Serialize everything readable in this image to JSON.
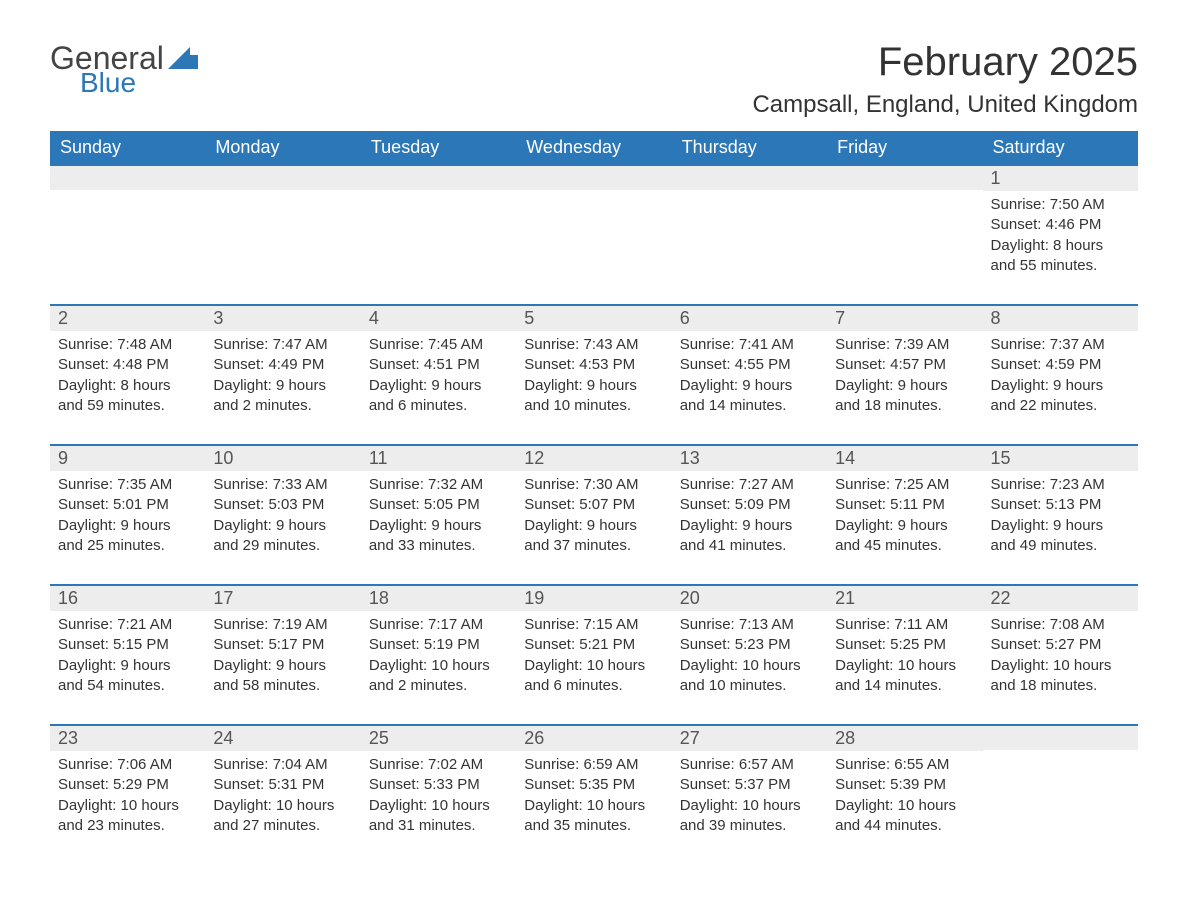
{
  "brand": {
    "text1": "General",
    "text2": "Blue",
    "color_general": "#444444",
    "color_blue": "#2b77b8"
  },
  "title": "February 2025",
  "location": "Campsall, England, United Kingdom",
  "header_bg": "#2b77b8",
  "header_fg": "#ffffff",
  "daynum_bg": "#ededed",
  "week_border": "#2b77b8",
  "days_of_week": [
    "Sunday",
    "Monday",
    "Tuesday",
    "Wednesday",
    "Thursday",
    "Friday",
    "Saturday"
  ],
  "weeks": [
    [
      null,
      null,
      null,
      null,
      null,
      null,
      {
        "n": "1",
        "sunrise": "Sunrise: 7:50 AM",
        "sunset": "Sunset: 4:46 PM",
        "daylight": "Daylight: 8 hours and 55 minutes."
      }
    ],
    [
      {
        "n": "2",
        "sunrise": "Sunrise: 7:48 AM",
        "sunset": "Sunset: 4:48 PM",
        "daylight": "Daylight: 8 hours and 59 minutes."
      },
      {
        "n": "3",
        "sunrise": "Sunrise: 7:47 AM",
        "sunset": "Sunset: 4:49 PM",
        "daylight": "Daylight: 9 hours and 2 minutes."
      },
      {
        "n": "4",
        "sunrise": "Sunrise: 7:45 AM",
        "sunset": "Sunset: 4:51 PM",
        "daylight": "Daylight: 9 hours and 6 minutes."
      },
      {
        "n": "5",
        "sunrise": "Sunrise: 7:43 AM",
        "sunset": "Sunset: 4:53 PM",
        "daylight": "Daylight: 9 hours and 10 minutes."
      },
      {
        "n": "6",
        "sunrise": "Sunrise: 7:41 AM",
        "sunset": "Sunset: 4:55 PM",
        "daylight": "Daylight: 9 hours and 14 minutes."
      },
      {
        "n": "7",
        "sunrise": "Sunrise: 7:39 AM",
        "sunset": "Sunset: 4:57 PM",
        "daylight": "Daylight: 9 hours and 18 minutes."
      },
      {
        "n": "8",
        "sunrise": "Sunrise: 7:37 AM",
        "sunset": "Sunset: 4:59 PM",
        "daylight": "Daylight: 9 hours and 22 minutes."
      }
    ],
    [
      {
        "n": "9",
        "sunrise": "Sunrise: 7:35 AM",
        "sunset": "Sunset: 5:01 PM",
        "daylight": "Daylight: 9 hours and 25 minutes."
      },
      {
        "n": "10",
        "sunrise": "Sunrise: 7:33 AM",
        "sunset": "Sunset: 5:03 PM",
        "daylight": "Daylight: 9 hours and 29 minutes."
      },
      {
        "n": "11",
        "sunrise": "Sunrise: 7:32 AM",
        "sunset": "Sunset: 5:05 PM",
        "daylight": "Daylight: 9 hours and 33 minutes."
      },
      {
        "n": "12",
        "sunrise": "Sunrise: 7:30 AM",
        "sunset": "Sunset: 5:07 PM",
        "daylight": "Daylight: 9 hours and 37 minutes."
      },
      {
        "n": "13",
        "sunrise": "Sunrise: 7:27 AM",
        "sunset": "Sunset: 5:09 PM",
        "daylight": "Daylight: 9 hours and 41 minutes."
      },
      {
        "n": "14",
        "sunrise": "Sunrise: 7:25 AM",
        "sunset": "Sunset: 5:11 PM",
        "daylight": "Daylight: 9 hours and 45 minutes."
      },
      {
        "n": "15",
        "sunrise": "Sunrise: 7:23 AM",
        "sunset": "Sunset: 5:13 PM",
        "daylight": "Daylight: 9 hours and 49 minutes."
      }
    ],
    [
      {
        "n": "16",
        "sunrise": "Sunrise: 7:21 AM",
        "sunset": "Sunset: 5:15 PM",
        "daylight": "Daylight: 9 hours and 54 minutes."
      },
      {
        "n": "17",
        "sunrise": "Sunrise: 7:19 AM",
        "sunset": "Sunset: 5:17 PM",
        "daylight": "Daylight: 9 hours and 58 minutes."
      },
      {
        "n": "18",
        "sunrise": "Sunrise: 7:17 AM",
        "sunset": "Sunset: 5:19 PM",
        "daylight": "Daylight: 10 hours and 2 minutes."
      },
      {
        "n": "19",
        "sunrise": "Sunrise: 7:15 AM",
        "sunset": "Sunset: 5:21 PM",
        "daylight": "Daylight: 10 hours and 6 minutes."
      },
      {
        "n": "20",
        "sunrise": "Sunrise: 7:13 AM",
        "sunset": "Sunset: 5:23 PM",
        "daylight": "Daylight: 10 hours and 10 minutes."
      },
      {
        "n": "21",
        "sunrise": "Sunrise: 7:11 AM",
        "sunset": "Sunset: 5:25 PM",
        "daylight": "Daylight: 10 hours and 14 minutes."
      },
      {
        "n": "22",
        "sunrise": "Sunrise: 7:08 AM",
        "sunset": "Sunset: 5:27 PM",
        "daylight": "Daylight: 10 hours and 18 minutes."
      }
    ],
    [
      {
        "n": "23",
        "sunrise": "Sunrise: 7:06 AM",
        "sunset": "Sunset: 5:29 PM",
        "daylight": "Daylight: 10 hours and 23 minutes."
      },
      {
        "n": "24",
        "sunrise": "Sunrise: 7:04 AM",
        "sunset": "Sunset: 5:31 PM",
        "daylight": "Daylight: 10 hours and 27 minutes."
      },
      {
        "n": "25",
        "sunrise": "Sunrise: 7:02 AM",
        "sunset": "Sunset: 5:33 PM",
        "daylight": "Daylight: 10 hours and 31 minutes."
      },
      {
        "n": "26",
        "sunrise": "Sunrise: 6:59 AM",
        "sunset": "Sunset: 5:35 PM",
        "daylight": "Daylight: 10 hours and 35 minutes."
      },
      {
        "n": "27",
        "sunrise": "Sunrise: 6:57 AM",
        "sunset": "Sunset: 5:37 PM",
        "daylight": "Daylight: 10 hours and 39 minutes."
      },
      {
        "n": "28",
        "sunrise": "Sunrise: 6:55 AM",
        "sunset": "Sunset: 5:39 PM",
        "daylight": "Daylight: 10 hours and 44 minutes."
      },
      null
    ]
  ]
}
